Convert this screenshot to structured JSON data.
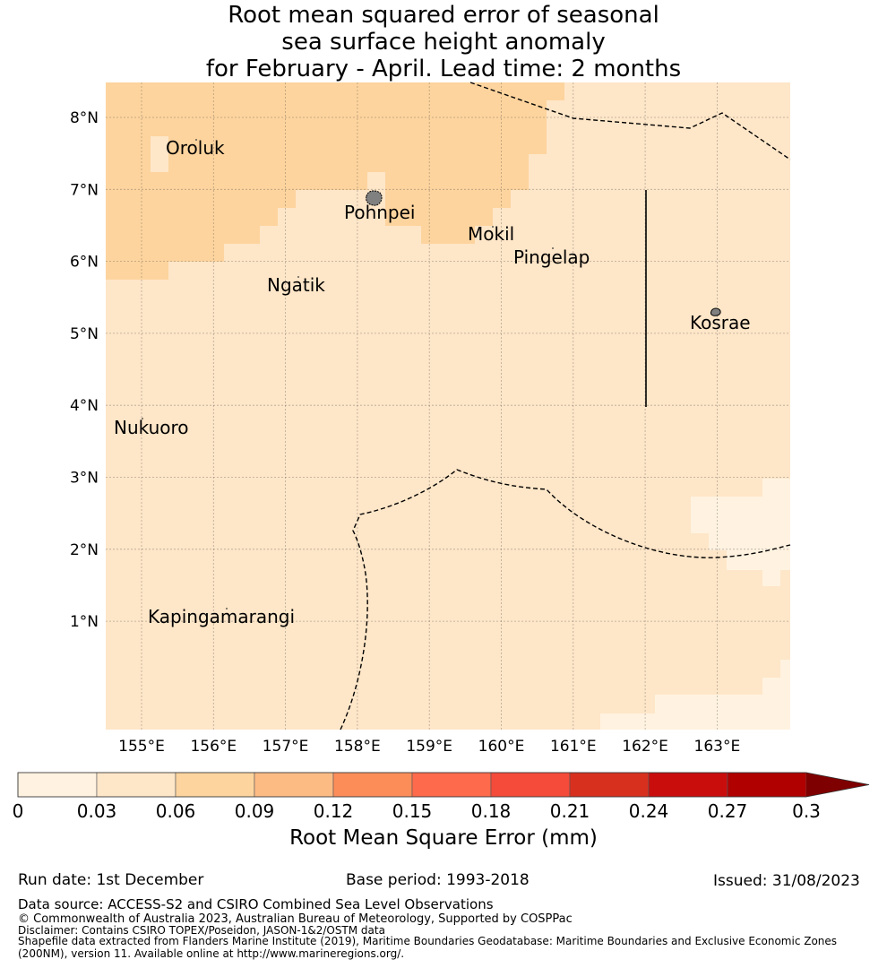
{
  "title": {
    "line1": "Root mean squared error of seasonal",
    "line2": "sea surface height anomaly",
    "line3": "for February - April. Lead time: 2 months"
  },
  "map": {
    "lon_labels": [
      "155°E",
      "156°E",
      "157°E",
      "158°E",
      "159°E",
      "160°E",
      "161°E",
      "162°E",
      "163°E"
    ],
    "lat_labels": [
      "8°N",
      "7°N",
      "6°N",
      "5°N",
      "4°N",
      "3°N",
      "2°N",
      "1°N"
    ],
    "places": [
      {
        "name": "Oroluk"
      },
      {
        "name": "Pohnpei"
      },
      {
        "name": "Mokil"
      },
      {
        "name": "Pingelap"
      },
      {
        "name": "Ngatik"
      },
      {
        "name": "Kosrae"
      },
      {
        "name": "Nukuoro"
      },
      {
        "name": "Kapingamarangi"
      }
    ],
    "colors": {
      "lightest": "#fff2e0",
      "light": "#fee6c8",
      "mid": "#fdd49e",
      "boundary": "#000000",
      "land": "#808080"
    }
  },
  "colorbar": {
    "ticks": [
      "0",
      "0.03",
      "0.06",
      "0.09",
      "0.12",
      "0.15",
      "0.18",
      "0.21",
      "0.24",
      "0.27",
      "0.3"
    ],
    "colors": [
      "#fff2e0",
      "#fee6c8",
      "#fdd49e",
      "#fdbb84",
      "#fc8d59",
      "#fd6a4c",
      "#f44b3a",
      "#d7301f",
      "#c90d0d",
      "#b00000"
    ],
    "extend_color": "#7f0000",
    "label": "Root Mean Square Error (mm)"
  },
  "footer": {
    "run_date": "Run date: 1st December",
    "base_period": "Base period: 1993-2018",
    "issued": "Issued: 31/08/2023",
    "data_source": "Data source: ACCESS-S2 and CSIRO Combined Sea Level Observations",
    "copyright": "© Commonwealth of Australia 2023, Australian Bureau of Meteorology, Supported by COSPPac",
    "disclaimer": "Disclaimer: Contains CSIRO TOPEX/Poseidon, JASON-1&2/OSTM data",
    "shapefile1": "Shapefile data extracted from Flanders Marine Institute (2019), Maritime Boundaries Geodatabase: Maritime Boundaries and Exclusive Economic Zones",
    "shapefile2": "(200NM), version 11. Available online at http://www.marineregions.org/."
  }
}
